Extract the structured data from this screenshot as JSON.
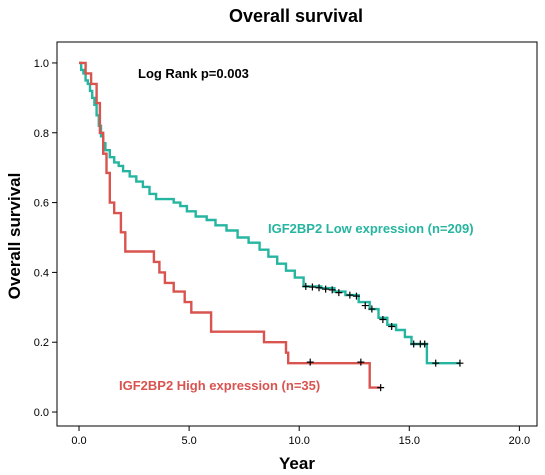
{
  "chart_data": {
    "type": "line",
    "title": "Overall survival",
    "xlabel": "Year",
    "ylabel": "Overall survival",
    "xlim": [
      -1,
      20.8
    ],
    "ylim": [
      -0.04,
      1.06
    ],
    "xticks": [
      "0.0",
      "5.0",
      "10.0",
      "15.0",
      "20.0"
    ],
    "yticks": [
      "0.0",
      "0.2",
      "0.4",
      "0.6",
      "0.8",
      "1.0"
    ],
    "annotation": "Log Rank p=0.003",
    "series": [
      {
        "name": "IGF2BP2 Low expression (n=209)",
        "color": "#26b5a0",
        "step": [
          [
            0,
            1.0
          ],
          [
            0.1,
            0.98
          ],
          [
            0.2,
            0.97
          ],
          [
            0.3,
            0.95
          ],
          [
            0.4,
            0.94
          ],
          [
            0.5,
            0.92
          ],
          [
            0.6,
            0.9
          ],
          [
            0.7,
            0.88
          ],
          [
            0.8,
            0.85
          ],
          [
            0.9,
            0.82
          ],
          [
            1.0,
            0.79
          ],
          [
            1.1,
            0.77
          ],
          [
            1.2,
            0.75
          ],
          [
            1.4,
            0.73
          ],
          [
            1.6,
            0.715
          ],
          [
            1.8,
            0.705
          ],
          [
            2.0,
            0.69
          ],
          [
            2.3,
            0.675
          ],
          [
            2.6,
            0.66
          ],
          [
            2.9,
            0.645
          ],
          [
            3.2,
            0.625
          ],
          [
            3.5,
            0.61
          ],
          [
            4.0,
            0.61
          ],
          [
            4.3,
            0.6
          ],
          [
            4.6,
            0.59
          ],
          [
            4.9,
            0.575
          ],
          [
            5.3,
            0.56
          ],
          [
            5.8,
            0.55
          ],
          [
            6.2,
            0.535
          ],
          [
            6.7,
            0.52
          ],
          [
            7.2,
            0.5
          ],
          [
            7.7,
            0.485
          ],
          [
            8.2,
            0.465
          ],
          [
            8.6,
            0.445
          ],
          [
            9.0,
            0.425
          ],
          [
            9.4,
            0.405
          ],
          [
            9.8,
            0.385
          ],
          [
            10.2,
            0.36
          ],
          [
            11.0,
            0.355
          ],
          [
            11.6,
            0.345
          ],
          [
            12.1,
            0.335
          ],
          [
            12.7,
            0.315
          ],
          [
            13.2,
            0.295
          ],
          [
            13.6,
            0.27
          ],
          [
            14.0,
            0.25
          ],
          [
            14.4,
            0.235
          ],
          [
            14.8,
            0.215
          ],
          [
            15.1,
            0.195
          ],
          [
            15.8,
            0.14
          ],
          [
            16.4,
            0.14
          ],
          [
            17.3,
            0.14
          ]
        ],
        "censored": [
          [
            10.3,
            0.36
          ],
          [
            10.6,
            0.358
          ],
          [
            10.9,
            0.356
          ],
          [
            11.2,
            0.352
          ],
          [
            11.5,
            0.35
          ],
          [
            11.8,
            0.342
          ],
          [
            12.3,
            0.335
          ],
          [
            12.6,
            0.332
          ],
          [
            13.0,
            0.305
          ],
          [
            13.3,
            0.295
          ],
          [
            13.8,
            0.265
          ],
          [
            14.2,
            0.245
          ],
          [
            15.2,
            0.195
          ],
          [
            15.5,
            0.195
          ],
          [
            15.7,
            0.195
          ],
          [
            16.2,
            0.14
          ],
          [
            17.3,
            0.14
          ]
        ]
      },
      {
        "name": "IGF2BP2 High expression (n=35)",
        "color": "#d9534f",
        "step": [
          [
            0,
            1.0
          ],
          [
            0.3,
            0.97
          ],
          [
            0.55,
            0.94
          ],
          [
            0.8,
            0.885
          ],
          [
            0.95,
            0.8
          ],
          [
            1.1,
            0.74
          ],
          [
            1.25,
            0.685
          ],
          [
            1.4,
            0.6
          ],
          [
            1.6,
            0.57
          ],
          [
            1.9,
            0.515
          ],
          [
            2.1,
            0.46
          ],
          [
            3.4,
            0.43
          ],
          [
            3.65,
            0.4
          ],
          [
            3.9,
            0.37
          ],
          [
            4.3,
            0.345
          ],
          [
            4.8,
            0.315
          ],
          [
            5.1,
            0.285
          ],
          [
            6.0,
            0.23
          ],
          [
            8.4,
            0.2
          ],
          [
            9.4,
            0.17
          ],
          [
            9.5,
            0.14
          ],
          [
            13.2,
            0.07
          ],
          [
            13.7,
            0.07
          ]
        ],
        "censored": [
          [
            10.5,
            0.143
          ],
          [
            12.8,
            0.143
          ],
          [
            13.7,
            0.07
          ]
        ]
      }
    ]
  }
}
